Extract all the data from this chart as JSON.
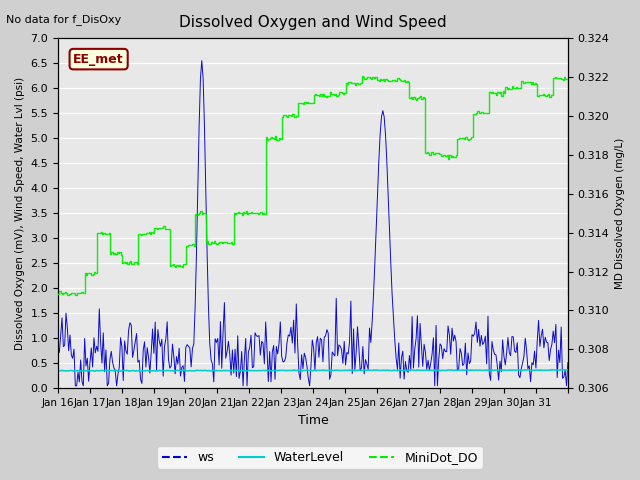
{
  "title": "Dissolved Oxygen and Wind Speed",
  "top_left_text": "No data for f_DisOxy",
  "annotation_text": "EE_met",
  "xlabel": "Time",
  "ylabel_left": "Dissolved Oxygen (mV), Wind Speed, Water Lvl (psi)",
  "ylabel_right": "MD Dissolved Oxygen (mg/L)",
  "ylim_left": [
    0.0,
    7.0
  ],
  "ylim_right": [
    0.306,
    0.324
  ],
  "fig_bg_color": "#d0d0d0",
  "plot_bg_color": "#e8e8e8",
  "ws_color": "#0000cc",
  "water_color": "#00cccc",
  "do_color": "#00ee00",
  "legend_items": [
    "ws",
    "WaterLevel",
    "MiniDot_DO"
  ],
  "xtick_positions": [
    0,
    1,
    2,
    3,
    4,
    5,
    6,
    7,
    8,
    9,
    10,
    11,
    12,
    13,
    14,
    15,
    16
  ],
  "xtick_labels": [
    "Jan 16",
    "Jan 17",
    "Jan 18",
    "Jan 19",
    "Jan 20",
    "Jan 21",
    "Jan 22",
    "Jan 23",
    "Jan 24",
    "Jan 25",
    "Jan 26",
    "Jan 27",
    "Jan 28",
    "Jan 29",
    "Jan 30",
    "Jan 31",
    ""
  ],
  "yticks_left": [
    0.0,
    0.5,
    1.0,
    1.5,
    2.0,
    2.5,
    3.0,
    3.5,
    4.0,
    4.5,
    5.0,
    5.5,
    6.0,
    6.5,
    7.0
  ],
  "yticks_right": [
    0.306,
    0.308,
    0.31,
    0.312,
    0.314,
    0.316,
    0.318,
    0.32,
    0.322,
    0.324
  ]
}
